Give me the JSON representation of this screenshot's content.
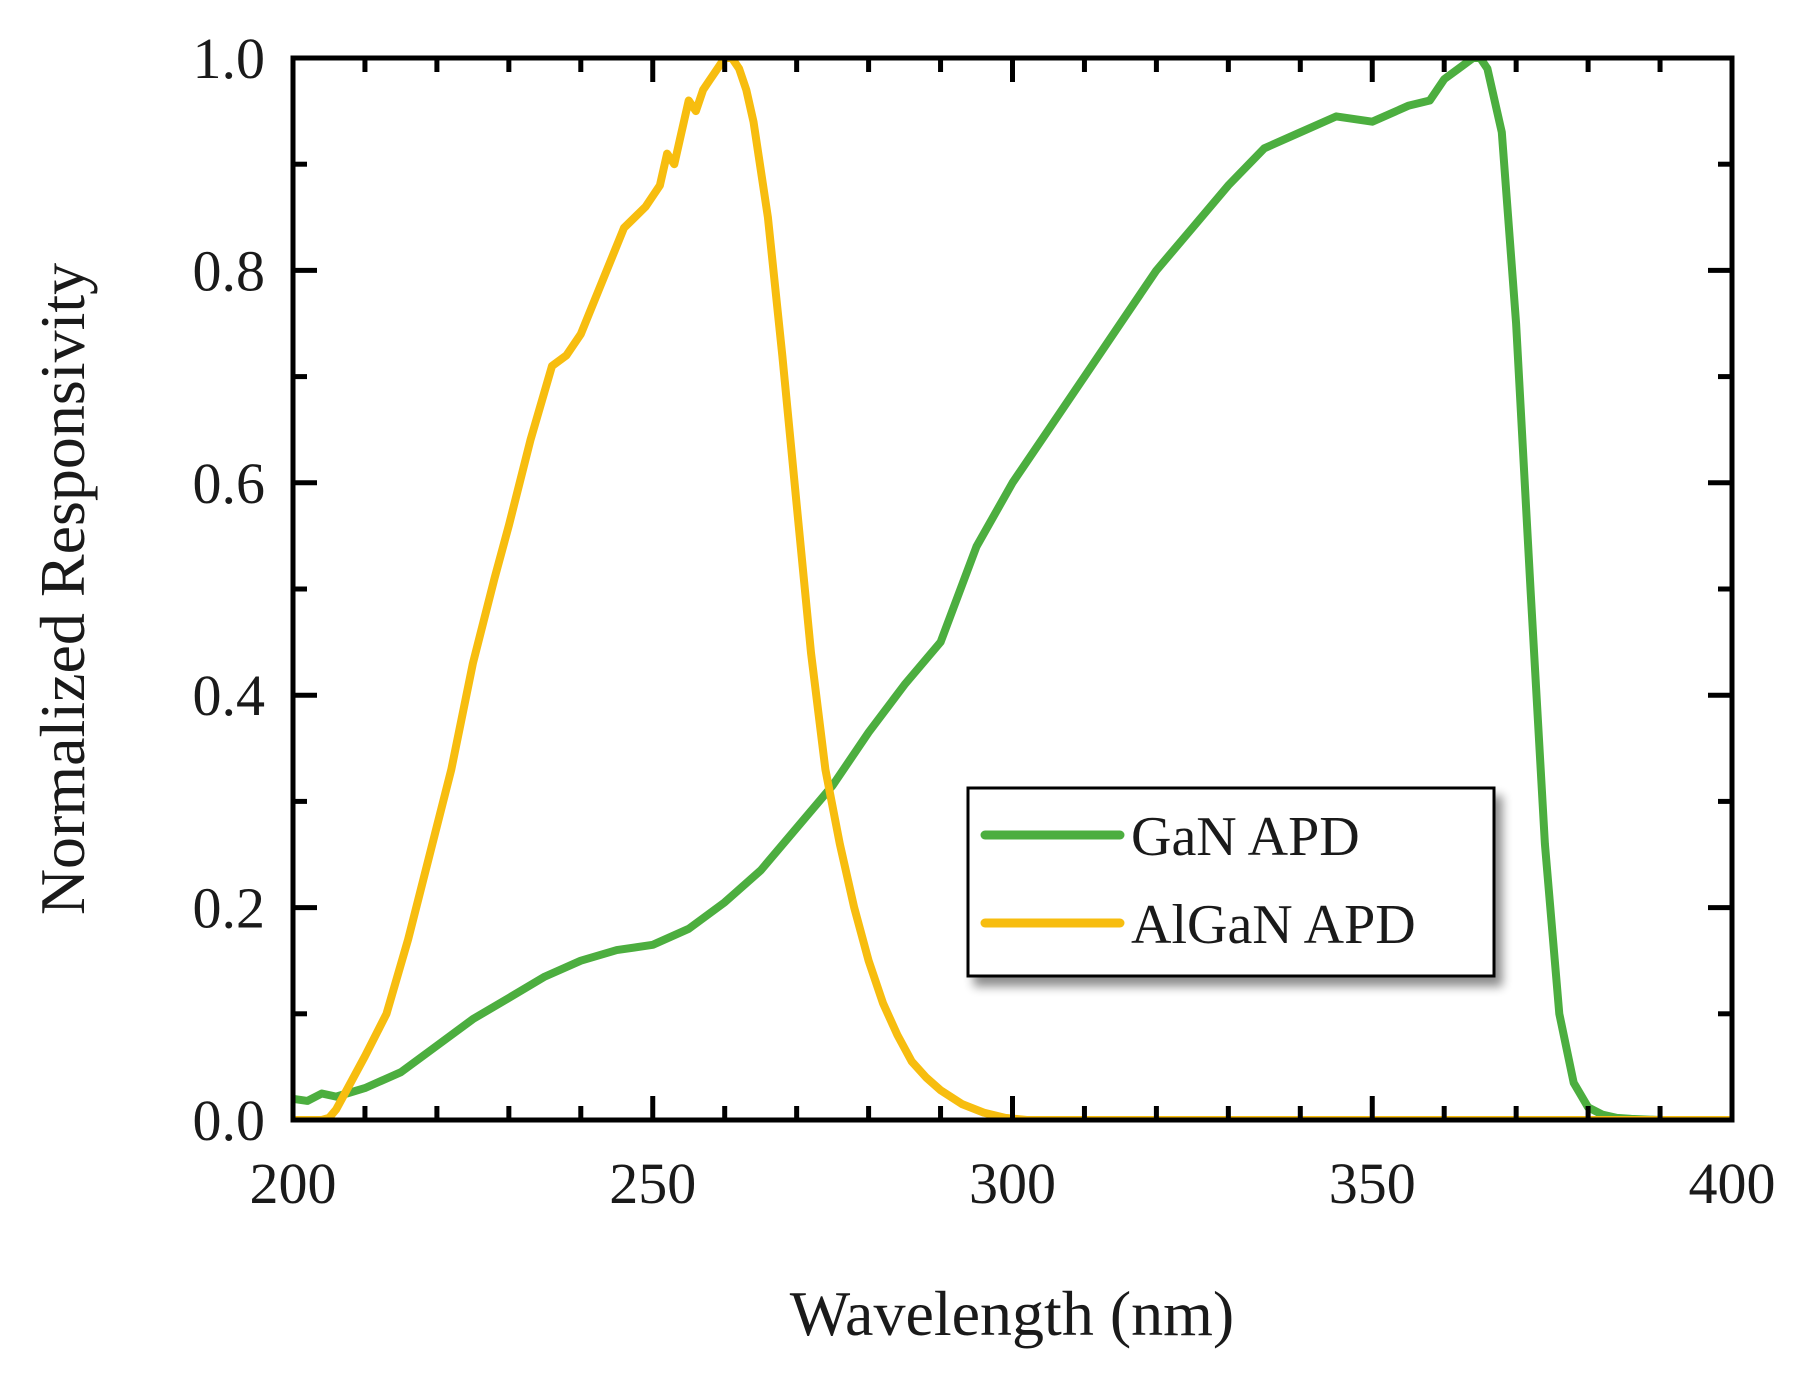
{
  "chart_data": {
    "type": "line",
    "title": "",
    "xlabel": "Wavelength (nm)",
    "ylabel": "Normalized Responsivity",
    "xlim": [
      200,
      400
    ],
    "ylim": [
      0.0,
      1.0
    ],
    "x_ticks": [
      "200",
      "250",
      "300",
      "350",
      "400"
    ],
    "x_tick_values": [
      200,
      250,
      300,
      350,
      400
    ],
    "y_ticks": [
      "0.0",
      "0.2",
      "0.4",
      "0.6",
      "0.8",
      "1.0"
    ],
    "y_tick_values": [
      0.0,
      0.2,
      0.4,
      0.6,
      0.8,
      1.0
    ],
    "grid": false,
    "legend_position": "bottom-right",
    "series": [
      {
        "name": "GaN APD",
        "color": "#4cae3f",
        "x": [
          200,
          202,
          204,
          206,
          208,
          210,
          215,
          220,
          225,
          230,
          235,
          240,
          245,
          250,
          255,
          260,
          265,
          270,
          275,
          280,
          285,
          290,
          295,
          300,
          305,
          310,
          315,
          320,
          325,
          330,
          335,
          340,
          345,
          350,
          355,
          358,
          360,
          362,
          364,
          365,
          366,
          368,
          370,
          372,
          374,
          376,
          378,
          380,
          382,
          384,
          386,
          390,
          395,
          400
        ],
        "y": [
          0.02,
          0.018,
          0.025,
          0.022,
          0.026,
          0.03,
          0.045,
          0.07,
          0.095,
          0.115,
          0.135,
          0.15,
          0.16,
          0.165,
          0.18,
          0.205,
          0.235,
          0.275,
          0.315,
          0.365,
          0.41,
          0.45,
          0.54,
          0.6,
          0.65,
          0.7,
          0.75,
          0.8,
          0.84,
          0.88,
          0.915,
          0.93,
          0.945,
          0.94,
          0.955,
          0.96,
          0.98,
          0.99,
          1.0,
          1.0,
          0.99,
          0.93,
          0.75,
          0.5,
          0.26,
          0.1,
          0.035,
          0.012,
          0.005,
          0.002,
          0.001,
          0.0,
          0.0,
          0.0
        ]
      },
      {
        "name": "AlGaN APD",
        "color": "#f7bd0f",
        "x": [
          200,
          202,
          204,
          205,
          206,
          208,
          210,
          213,
          216,
          219,
          222,
          225,
          228,
          230,
          233,
          236,
          238,
          240,
          243,
          246,
          249,
          251,
          252,
          253,
          254,
          255,
          256,
          257,
          258,
          259,
          260,
          261,
          262,
          263,
          264,
          266,
          268,
          270,
          272,
          274,
          276,
          278,
          280,
          282,
          284,
          286,
          288,
          290,
          293,
          296,
          299,
          302,
          310,
          320,
          340,
          360,
          380,
          400
        ],
        "y": [
          0.0,
          0.0,
          0.0,
          0.002,
          0.01,
          0.035,
          0.06,
          0.1,
          0.17,
          0.25,
          0.33,
          0.43,
          0.51,
          0.56,
          0.64,
          0.71,
          0.72,
          0.74,
          0.79,
          0.84,
          0.86,
          0.88,
          0.91,
          0.9,
          0.93,
          0.96,
          0.95,
          0.97,
          0.98,
          0.99,
          1.0,
          1.0,
          0.99,
          0.97,
          0.94,
          0.85,
          0.72,
          0.58,
          0.44,
          0.33,
          0.26,
          0.2,
          0.15,
          0.11,
          0.08,
          0.055,
          0.04,
          0.028,
          0.015,
          0.007,
          0.002,
          0.0,
          0.0,
          0.0,
          0.0,
          0.0,
          0.0,
          0.0
        ]
      }
    ]
  }
}
